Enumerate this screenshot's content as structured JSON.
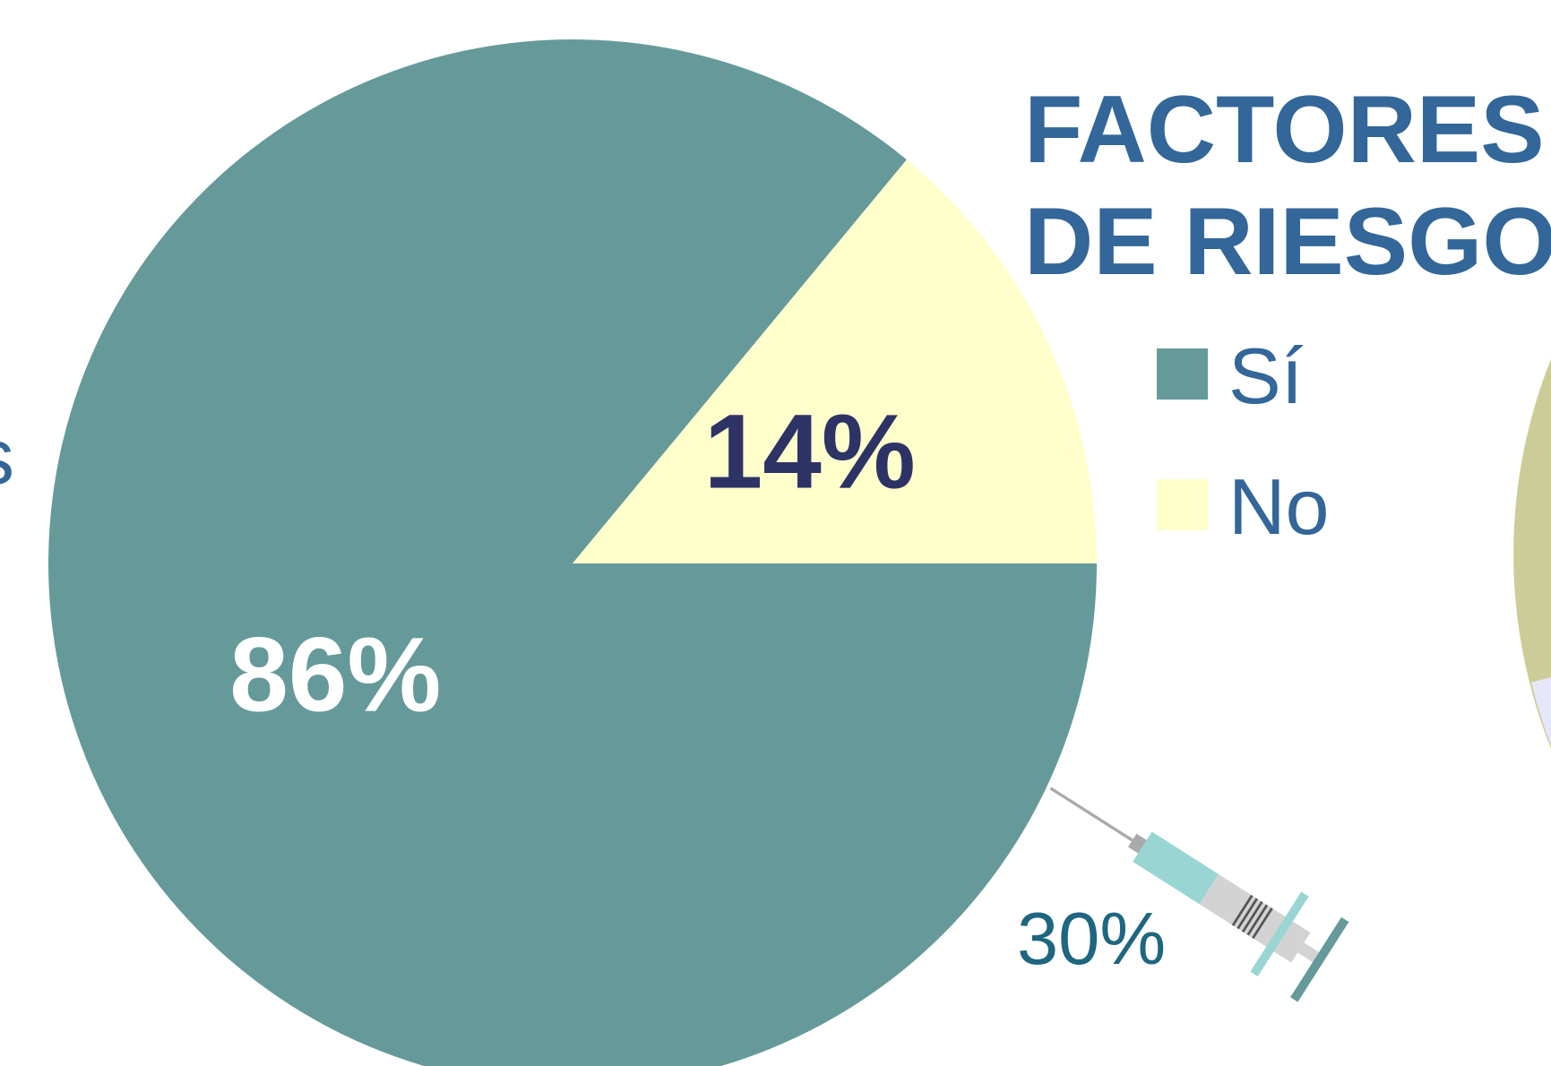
{
  "chart_data": {
    "type": "pie",
    "title": "FACTORES DE RIESGO",
    "categories": [
      "Sí",
      "No"
    ],
    "values": [
      86,
      14
    ],
    "value_labels": [
      "86%",
      "14%"
    ],
    "colors": [
      "#669a9a",
      "#ffffcc"
    ],
    "label_colors": [
      "#ffffff",
      "#2e3366"
    ],
    "legend": "right",
    "annotations": [
      "30%",
      "s"
    ]
  }
}
